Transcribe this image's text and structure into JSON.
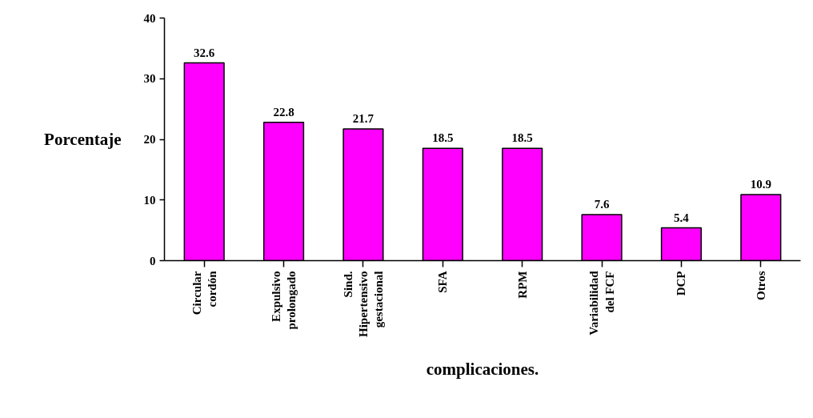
{
  "chart_data": {
    "type": "bar",
    "xlabel": "complicaciones.",
    "ylabel": "Porcentaje",
    "categories": [
      "Circular\ncordón",
      "Expulsivo\nprolongado",
      "Sind.\nHipertensivo\ngestacional",
      "SFA",
      "RPM",
      "Variabilidad\ndel FCF",
      "DCP",
      "Otros"
    ],
    "values": [
      32.6,
      22.8,
      21.7,
      18.5,
      18.5,
      7.6,
      5.4,
      10.9
    ],
    "color": "#ff00ff",
    "ylim": [
      0,
      40
    ],
    "yticks": [
      0,
      10,
      20,
      30,
      40
    ],
    "grid": false,
    "data_labels": true
  }
}
